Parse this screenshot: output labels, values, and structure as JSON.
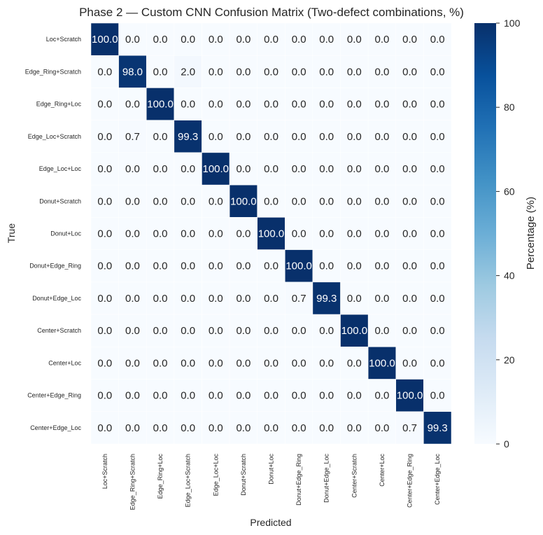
{
  "chart_data": {
    "type": "heatmap",
    "title": "Phase 2 — Custom CNN Confusion Matrix (Two-defect combinations, %)",
    "xlabel": "Predicted",
    "ylabel": "True",
    "colorbar_label": "Percentage (%)",
    "colorbar_ticks": [
      "0",
      "20",
      "40",
      "60",
      "80",
      "100"
    ],
    "vmin": 0,
    "vmax": 100,
    "categories": [
      "Loc+Scratch",
      "Edge_Ring+Scratch",
      "Edge_Ring+Loc",
      "Edge_Loc+Scratch",
      "Edge_Loc+Loc",
      "Donut+Scratch",
      "Donut+Loc",
      "Donut+Edge_Ring",
      "Donut+Edge_Loc",
      "Center+Scratch",
      "Center+Loc",
      "Center+Edge_Ring",
      "Center+Edge_Loc"
    ],
    "matrix": [
      [
        100.0,
        0.0,
        0.0,
        0.0,
        0.0,
        0.0,
        0.0,
        0.0,
        0.0,
        0.0,
        0.0,
        0.0,
        0.0
      ],
      [
        0.0,
        98.0,
        0.0,
        2.0,
        0.0,
        0.0,
        0.0,
        0.0,
        0.0,
        0.0,
        0.0,
        0.0,
        0.0
      ],
      [
        0.0,
        0.0,
        100.0,
        0.0,
        0.0,
        0.0,
        0.0,
        0.0,
        0.0,
        0.0,
        0.0,
        0.0,
        0.0
      ],
      [
        0.0,
        0.7,
        0.0,
        99.3,
        0.0,
        0.0,
        0.0,
        0.0,
        0.0,
        0.0,
        0.0,
        0.0,
        0.0
      ],
      [
        0.0,
        0.0,
        0.0,
        0.0,
        100.0,
        0.0,
        0.0,
        0.0,
        0.0,
        0.0,
        0.0,
        0.0,
        0.0
      ],
      [
        0.0,
        0.0,
        0.0,
        0.0,
        0.0,
        100.0,
        0.0,
        0.0,
        0.0,
        0.0,
        0.0,
        0.0,
        0.0
      ],
      [
        0.0,
        0.0,
        0.0,
        0.0,
        0.0,
        0.0,
        100.0,
        0.0,
        0.0,
        0.0,
        0.0,
        0.0,
        0.0
      ],
      [
        0.0,
        0.0,
        0.0,
        0.0,
        0.0,
        0.0,
        0.0,
        100.0,
        0.0,
        0.0,
        0.0,
        0.0,
        0.0
      ],
      [
        0.0,
        0.0,
        0.0,
        0.0,
        0.0,
        0.0,
        0.0,
        0.7,
        99.3,
        0.0,
        0.0,
        0.0,
        0.0
      ],
      [
        0.0,
        0.0,
        0.0,
        0.0,
        0.0,
        0.0,
        0.0,
        0.0,
        0.0,
        100.0,
        0.0,
        0.0,
        0.0
      ],
      [
        0.0,
        0.0,
        0.0,
        0.0,
        0.0,
        0.0,
        0.0,
        0.0,
        0.0,
        0.0,
        100.0,
        0.0,
        0.0
      ],
      [
        0.0,
        0.0,
        0.0,
        0.0,
        0.0,
        0.0,
        0.0,
        0.0,
        0.0,
        0.0,
        0.0,
        100.0,
        0.0
      ],
      [
        0.0,
        0.0,
        0.0,
        0.0,
        0.0,
        0.0,
        0.0,
        0.0,
        0.0,
        0.0,
        0.0,
        0.7,
        99.3
      ]
    ],
    "colormap": "Blues",
    "low_color": "#f7fbff",
    "high_color": "#08306b",
    "grid_color": "#ffffff"
  }
}
